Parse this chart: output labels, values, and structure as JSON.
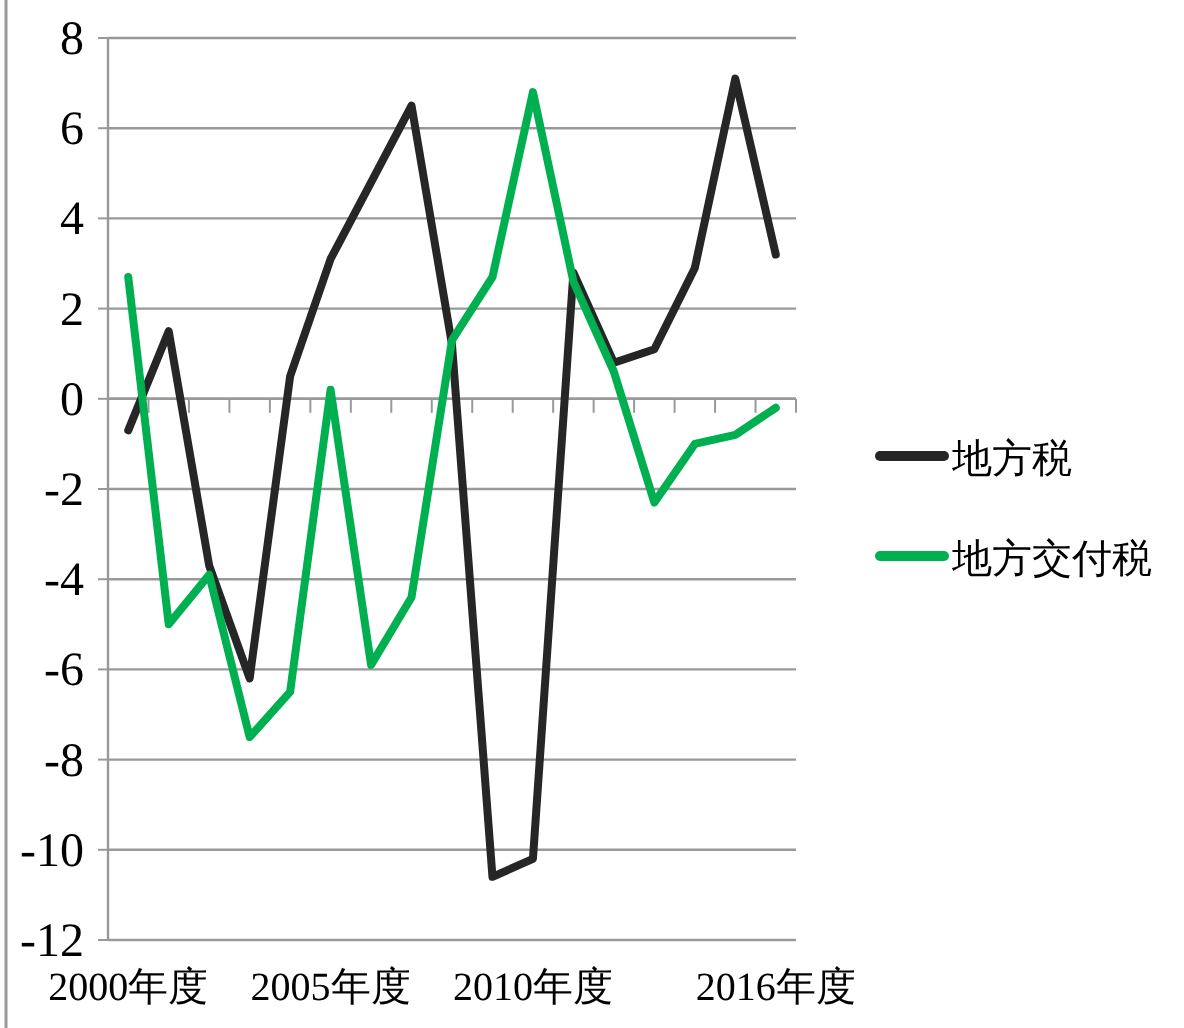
{
  "chart_data": {
    "type": "line",
    "categories": [
      "2000年度",
      null,
      null,
      null,
      null,
      "2005年度",
      null,
      null,
      null,
      null,
      "2010年度",
      null,
      null,
      null,
      null,
      null,
      "2016年度"
    ],
    "series": [
      {
        "name": "地方税",
        "color": "#262626",
        "values": [
          -0.7,
          1.5,
          -3.7,
          -6.2,
          0.5,
          3.1,
          4.8,
          6.5,
          1.2,
          -10.6,
          -10.2,
          2.8,
          0.8,
          1.1,
          2.9,
          7.1,
          3.2
        ]
      },
      {
        "name": "地方交付税",
        "color": "#00b050",
        "values": [
          2.7,
          -5.0,
          -3.9,
          -7.5,
          -6.5,
          0.2,
          -5.9,
          -4.4,
          1.3,
          2.7,
          6.8,
          2.6,
          0.6,
          -2.3,
          -1.0,
          -0.8,
          -0.2
        ]
      }
    ],
    "ylim": [
      -12,
      8
    ],
    "yticks": [
      -12,
      -10,
      -8,
      -6,
      -4,
      -2,
      0,
      2,
      4,
      6,
      8
    ],
    "grid": "y",
    "legend": "right",
    "marker": "none",
    "line_style": "solid"
  }
}
